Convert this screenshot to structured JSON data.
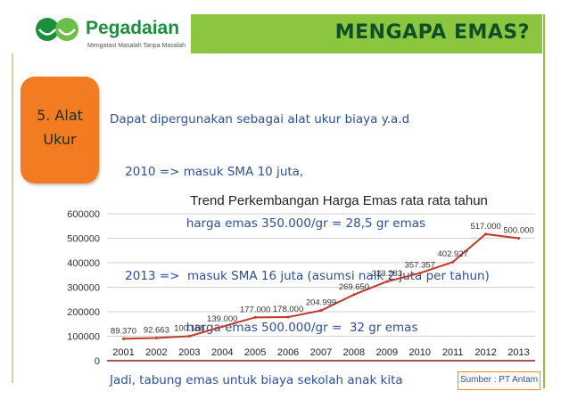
{
  "header": {
    "logo_name": "Pegadaian",
    "logo_tagline": "Mengatasi Masalah Tanpa Masalah",
    "title": "MENGAPA EMAS?",
    "colors": {
      "accent_green": "#8cc63f",
      "title_text": "#0d4f28",
      "logo_green": "#1b8f3c"
    }
  },
  "badge": {
    "line1": "5. Alat",
    "line2": "Ukur",
    "color": "#f37c22"
  },
  "content": {
    "lines": [
      "Dapat dipergunakan sebagai alat ukur biaya y.a.d",
      "    2010 => masuk SMA 10 juta,",
      "                    harga emas 350.000/gr = 28,5 gr emas",
      "    2013 =>  masuk SMA 16 juta (asumsi naik 2 juta per tahun)",
      "                    harga emas 500.000/gr =  32 gr emas",
      "Jadi, tabung emas untuk biaya sekolah anak kita"
    ],
    "text_color": "#2c4f9a"
  },
  "chart_data": {
    "type": "line",
    "title": "Trend Perkembangan Harga Emas rata rata tahun",
    "categories": [
      "2001",
      "2002",
      "2003",
      "2004",
      "2005",
      "2006",
      "2007",
      "2008",
      "2009",
      "2010",
      "2011",
      "2012",
      "2013"
    ],
    "values": [
      89370,
      92663,
      100168,
      139000,
      177000,
      178000,
      204999,
      269650,
      323283,
      357357,
      402927,
      517000,
      500000
    ],
    "data_labels": [
      "89.370",
      "92.663",
      "100.168",
      "139.000",
      "177.000",
      "178.000",
      "204.999",
      "269.650",
      "323.283",
      "357.357",
      "402.927",
      "517.000",
      "500.000"
    ],
    "y_ticks": [
      "0",
      "100000",
      "200000",
      "300000",
      "400000",
      "500000",
      "600000"
    ],
    "ylim": [
      0,
      600000
    ],
    "grid": true,
    "line_color": "#c0392b",
    "axis_color": "#8b1a1a"
  },
  "footer": {
    "source": "Sumber : PT Antam",
    "border_color": "#ff8c1a"
  }
}
